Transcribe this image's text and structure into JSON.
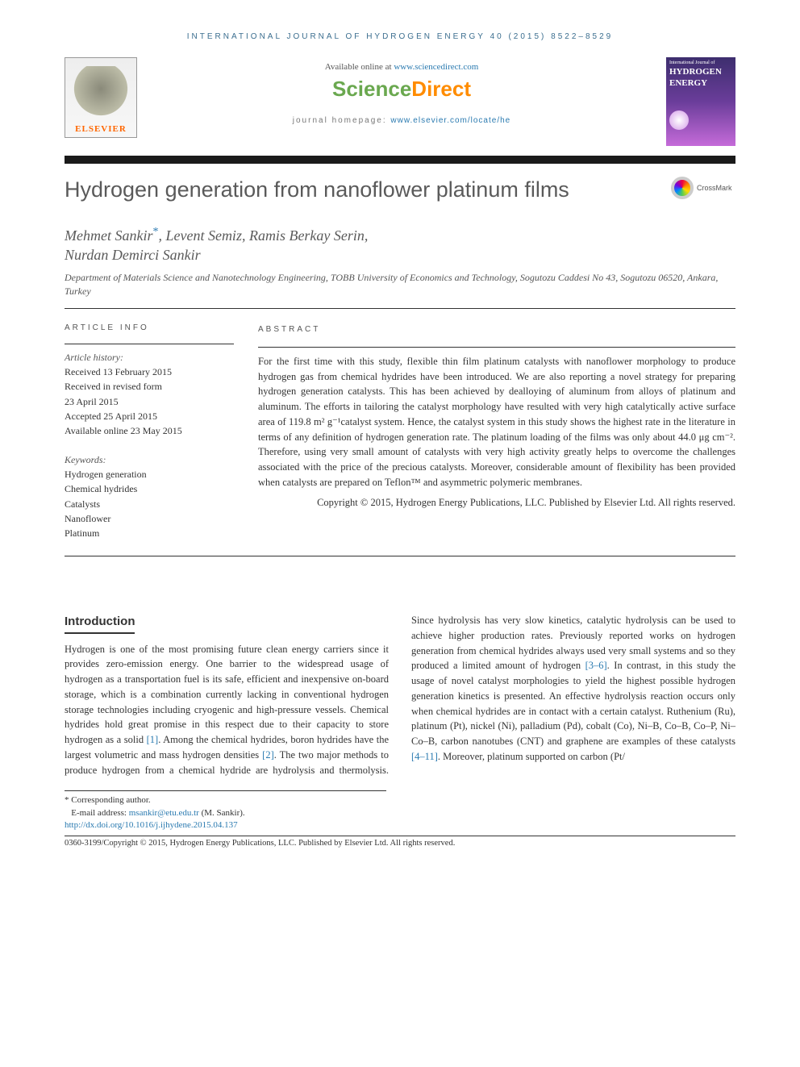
{
  "running_head": "INTERNATIONAL JOURNAL OF HYDROGEN ENERGY 40 (2015) 8522–8529",
  "header": {
    "available_prefix": "Available online at ",
    "available_link": "www.sciencedirect.com",
    "sd_part1": "Science",
    "sd_part2": "Direct",
    "homepage_prefix": "journal homepage: ",
    "homepage_link": "www.elsevier.com/locate/he",
    "elsevier_word": "ELSEVIER",
    "cover_top": "International Journal of",
    "cover_main_1": "HYDROGEN",
    "cover_main_2": "ENERGY"
  },
  "crossmark_label": "CrossMark",
  "title": "Hydrogen generation from nanoflower platinum films",
  "authors_line1": "Mehmet Sankir",
  "authors_line1_rest": ", Levent Semiz, Ramis Berkay Serin,",
  "authors_line2": "Nurdan Demirci Sankir",
  "corr_mark": "*",
  "affiliation": "Department of Materials Science and Nanotechnology Engineering, TOBB University of Economics and Technology, Sogutozu Caddesi No 43, Sogutozu 06520, Ankara, Turkey",
  "meta": {
    "info_head": "ARTICLE INFO",
    "history_label": "Article history:",
    "h1": "Received 13 February 2015",
    "h2": "Received in revised form",
    "h3": "23 April 2015",
    "h4": "Accepted 25 April 2015",
    "h5": "Available online 23 May 2015",
    "kw_label": "Keywords:",
    "k1": "Hydrogen generation",
    "k2": "Chemical hydrides",
    "k3": "Catalysts",
    "k4": "Nanoflower",
    "k5": "Platinum"
  },
  "abstract_head": "ABSTRACT",
  "abstract_body": "For the first time with this study, flexible thin film platinum catalysts with nanoflower morphology to produce hydrogen gas from chemical hydrides have been introduced. We are also reporting a novel strategy for preparing hydrogen generation catalysts. This has been achieved by dealloying of aluminum from alloys of platinum and aluminum. The efforts in tailoring the catalyst morphology have resulted with very high catalytically active surface area of 119.8 m² g⁻¹catalyst system. Hence, the catalyst system in this study shows the highest rate in the literature in terms of any definition of hydrogen generation rate. The platinum loading of the films was only about 44.0 μg cm⁻². Therefore, using very small amount of catalysts with very high activity greatly helps to overcome the challenges associated with the price of the precious catalysts. Moreover, considerable amount of flexibility has been provided when catalysts are prepared on Teflon™ and asymmetric polymeric membranes.",
  "abstract_copyright": "Copyright © 2015, Hydrogen Energy Publications, LLC. Published by Elsevier Ltd. All rights reserved.",
  "intro_head": "Introduction",
  "intro_p1_a": "Hydrogen is one of the most promising future clean energy carriers since it provides zero-emission energy. One barrier to the widespread usage of hydrogen as a transportation fuel is its safe, efficient and inexpensive on-board storage, which is a combination currently lacking in conventional hydrogen storage technologies including cryogenic and high-pressure vessels. Chemical hydrides hold great promise in this respect due to their capacity to store hydrogen as a solid ",
  "ref1": "[1]",
  "intro_p1_b": ". Among the chemical hydrides, boron hydrides have the largest volumetric and mass hydrogen densities ",
  "ref2": "[2]",
  "intro_p1_c": ". The two major methods to produce hydrogen from a chemical hydride",
  "intro_p2_a": "are hydrolysis and thermolysis. Since hydrolysis has very slow kinetics, catalytic hydrolysis can be used to achieve higher production rates. Previously reported works on hydrogen generation from chemical hydrides always used very small systems and so they produced a limited amount of hydrogen ",
  "ref36": "[3–6]",
  "intro_p2_b": ". In contrast, in this study the usage of novel catalyst morphologies to yield the highest possible hydrogen generation kinetics is presented. An effective hydrolysis reaction occurs only when chemical hydrides are in contact with a certain catalyst. Ruthenium (Ru), platinum (Pt), nickel (Ni), palladium (Pd), cobalt (Co), Ni–B, Co–B, Co–P, Ni–Co–B, carbon nanotubes (CNT) and graphene are examples of these catalysts ",
  "ref411": "[4–11]",
  "intro_p2_c": ". Moreover, platinum supported on carbon (Pt/",
  "footnotes": {
    "corr": "* Corresponding author.",
    "email_label": "E-mail address: ",
    "email": "msankir@etu.edu.tr",
    "email_after": " (M. Sankir).",
    "doi": "http://dx.doi.org/10.1016/j.ijhydene.2015.04.137",
    "issn_line": "0360-3199/Copyright © 2015, Hydrogen Energy Publications, LLC. Published by Elsevier Ltd. All rights reserved."
  },
  "colors": {
    "link": "#2a7ab0",
    "accent_orange": "#ff8c00",
    "accent_green": "#6aa84f",
    "rule_dark": "#1a1a1a",
    "text_gray": "#5a5a5a"
  }
}
